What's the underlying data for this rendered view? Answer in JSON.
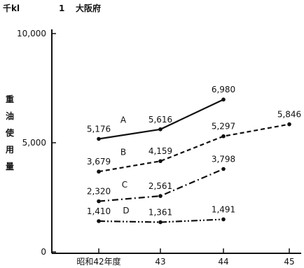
{
  "header": {
    "unit": "千kl",
    "panel_number": "1",
    "region": "大阪府"
  },
  "chart_data": {
    "type": "line",
    "title": "",
    "xlabel": "",
    "ylabel": "重油使用量",
    "categories": [
      "昭和42年度",
      "43",
      "44",
      "45"
    ],
    "ylim": [
      0,
      10000
    ],
    "yticks": [
      0,
      5000,
      10000
    ],
    "ytick_labels": [
      "0",
      "5,000",
      "10,000"
    ],
    "grid": false,
    "series": [
      {
        "name": "A",
        "values": [
          5176,
          5616,
          6980,
          null
        ],
        "labels": [
          "5,176",
          "5,616",
          "6,980",
          ""
        ],
        "style": "solid"
      },
      {
        "name": "B",
        "values": [
          3679,
          4159,
          5297,
          5846
        ],
        "labels": [
          "3,679",
          "4,159",
          "5,297",
          "5,846"
        ],
        "style": "dashed"
      },
      {
        "name": "C",
        "values": [
          2320,
          2561,
          3798,
          null
        ],
        "labels": [
          "2,320",
          "2,561",
          "3,798",
          ""
        ],
        "style": "dash-dot"
      },
      {
        "name": "D",
        "values": [
          1410,
          1361,
          1491,
          null
        ],
        "labels": [
          "1,410",
          "1,361",
          "1,491",
          ""
        ],
        "style": "dash-dot-dot"
      }
    ]
  }
}
